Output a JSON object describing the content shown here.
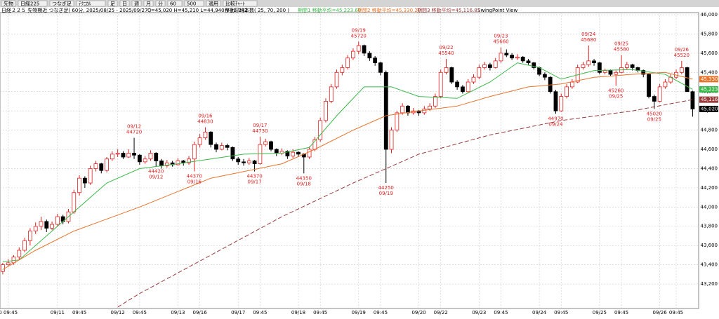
{
  "toolbar": {
    "items": [
      "先物",
      "日経225",
      "つなぎ足",
      "ﾃｸﾆｶﾙ",
      "足",
      "日",
      "週",
      "月",
      "分",
      "60",
      "500",
      "適用",
      "比較ﾁｬｰﾄ"
    ]
  },
  "chart_data": {
    "type": "candlestick",
    "info": {
      "title": "日経２２５ 先物期近 つなぎ足( 60分, 2025/08/25 - 2025/09/27 )",
      "ohlcv": "C=45,020 H=45,210 L=44,940 V=1,242",
      "ma_counts": "移動平均本数( 25, 70, 200 )",
      "view": "SwingPoint View"
    },
    "xlim": [
      -0.5,
      127.1
    ],
    "ylim": [
      42945,
      46022
    ],
    "yticks": [
      {
        "value": 43200,
        "label": "43,200"
      },
      {
        "value": 43400,
        "label": "43,400"
      },
      {
        "value": 43600,
        "label": "43,600"
      },
      {
        "value": 43800,
        "label": "43,800"
      },
      {
        "value": 44000,
        "label": "44,000"
      },
      {
        "value": 44200,
        "label": "44,200"
      },
      {
        "value": 44400,
        "label": "44,400"
      },
      {
        "value": 44600,
        "label": "44,600"
      },
      {
        "value": 44800,
        "label": "44,800"
      },
      {
        "value": 45000,
        "label": "45,000"
      },
      {
        "value": 45200,
        "label": "45,200"
      },
      {
        "value": 45400,
        "label": "45,400"
      },
      {
        "value": 45600,
        "label": "45,600"
      },
      {
        "value": 45800,
        "label": "45,800"
      },
      {
        "value": 46000,
        "label": "46,000"
      }
    ],
    "xticks": [
      {
        "value": 1,
        "label": "0 09:45"
      },
      {
        "value": 10,
        "label": "09/11"
      },
      {
        "value": 14,
        "label": "09:45"
      },
      {
        "value": 21,
        "label": "09/12"
      },
      {
        "value": 25,
        "label": "09:45"
      },
      {
        "value": 32,
        "label": "09/13"
      },
      {
        "value": 36,
        "label": "09/16"
      },
      {
        "value": 43,
        "label": "09/17"
      },
      {
        "value": 47,
        "label": "09:45"
      },
      {
        "value": 54,
        "label": "09/18"
      },
      {
        "value": 58,
        "label": "09:45"
      },
      {
        "value": 65,
        "label": "09/19"
      },
      {
        "value": 69,
        "label": "09:45"
      },
      {
        "value": 76,
        "label": "09/20"
      },
      {
        "value": 80,
        "label": "09/22"
      },
      {
        "value": 87,
        "label": "09/23"
      },
      {
        "value": 91,
        "label": "09:45"
      },
      {
        "value": 98,
        "label": "09/24"
      },
      {
        "value": 102,
        "label": "09:45"
      },
      {
        "value": 109,
        "label": "09/25"
      },
      {
        "value": 113,
        "label": "09:45"
      },
      {
        "value": 120,
        "label": "09/26"
      },
      {
        "value": 123,
        "label": "09:45"
      }
    ],
    "grid": true,
    "up_color": "#e02020",
    "down_color": "#000000",
    "candles": [
      [
        43330,
        43420,
        43300,
        43400
      ],
      [
        43400,
        43460,
        43380,
        43420
      ],
      [
        43420,
        43500,
        43400,
        43480
      ],
      [
        43480,
        43580,
        43450,
        43550
      ],
      [
        43550,
        43680,
        43530,
        43650
      ],
      [
        43650,
        43780,
        43600,
        43750
      ],
      [
        43750,
        43840,
        43720,
        43800
      ],
      [
        43800,
        43900,
        43760,
        43850
      ],
      [
        43850,
        43870,
        43740,
        43780
      ],
      [
        43780,
        43850,
        43760,
        43820
      ],
      [
        43820,
        43930,
        43800,
        43900
      ],
      [
        43900,
        43920,
        43820,
        43850
      ],
      [
        43850,
        43980,
        43830,
        43950
      ],
      [
        43950,
        44180,
        43930,
        44150
      ],
      [
        44150,
        44330,
        44120,
        44300
      ],
      [
        44300,
        44320,
        44200,
        44250
      ],
      [
        44250,
        44430,
        44230,
        44400
      ],
      [
        44400,
        44480,
        44370,
        44450
      ],
      [
        44450,
        44460,
        44350,
        44380
      ],
      [
        44380,
        44520,
        44360,
        44500
      ],
      [
        44500,
        44580,
        44480,
        44550
      ],
      [
        44550,
        44600,
        44520,
        44560
      ],
      [
        44560,
        44580,
        44500,
        44520
      ],
      [
        44520,
        44600,
        44510,
        44560
      ],
      [
        44560,
        44720,
        44500,
        44540
      ],
      [
        44540,
        44550,
        44440,
        44470
      ],
      [
        44470,
        44530,
        44450,
        44500
      ],
      [
        44500,
        44590,
        44480,
        44560
      ],
      [
        44560,
        44570,
        44420,
        44480
      ],
      [
        44480,
        44500,
        44400,
        44430
      ],
      [
        44430,
        44490,
        44410,
        44460
      ],
      [
        44460,
        44480,
        44420,
        44440
      ],
      [
        44440,
        44510,
        44430,
        44480
      ],
      [
        44480,
        44490,
        44430,
        44460
      ],
      [
        44460,
        44530,
        44440,
        44500
      ],
      [
        44500,
        44680,
        44370,
        44650
      ],
      [
        44650,
        44760,
        44620,
        44720
      ],
      [
        44720,
        44830,
        44700,
        44780
      ],
      [
        44780,
        44790,
        44620,
        44650
      ],
      [
        44650,
        44670,
        44570,
        44600
      ],
      [
        44600,
        44670,
        44590,
        44640
      ],
      [
        44640,
        44660,
        44590,
        44620
      ],
      [
        44620,
        44630,
        44480,
        44500
      ],
      [
        44500,
        44520,
        44440,
        44470
      ],
      [
        44470,
        44500,
        44430,
        44460
      ],
      [
        44460,
        44510,
        44440,
        44480
      ],
      [
        44480,
        44490,
        44370,
        44450
      ],
      [
        44450,
        44730,
        44440,
        44650
      ],
      [
        44650,
        44710,
        44630,
        44680
      ],
      [
        44680,
        44690,
        44580,
        44600
      ],
      [
        44600,
        44610,
        44530,
        44560
      ],
      [
        44560,
        44610,
        44540,
        44580
      ],
      [
        44580,
        44590,
        44500,
        44530
      ],
      [
        44530,
        44600,
        44510,
        44570
      ],
      [
        44570,
        44580,
        44520,
        44550
      ],
      [
        44550,
        44560,
        44350,
        44520
      ],
      [
        44520,
        44630,
        44500,
        44600
      ],
      [
        44600,
        44730,
        44580,
        44700
      ],
      [
        44700,
        44930,
        44680,
        44900
      ],
      [
        44900,
        45130,
        44880,
        45100
      ],
      [
        45100,
        45280,
        45080,
        45250
      ],
      [
        45250,
        45430,
        45230,
        45400
      ],
      [
        45400,
        45480,
        45370,
        45450
      ],
      [
        45450,
        45580,
        45430,
        45550
      ],
      [
        45550,
        45650,
        45530,
        45620
      ],
      [
        45620,
        45720,
        45590,
        45680
      ],
      [
        45680,
        45690,
        45570,
        45600
      ],
      [
        45600,
        45620,
        45520,
        45550
      ],
      [
        45550,
        45570,
        45470,
        45500
      ],
      [
        45500,
        45510,
        45370,
        45400
      ],
      [
        45400,
        45420,
        44250,
        44600
      ],
      [
        44600,
        44830,
        44560,
        44800
      ],
      [
        44800,
        45000,
        44780,
        44980
      ],
      [
        44980,
        45080,
        44960,
        45050
      ],
      [
        45050,
        45060,
        44950,
        44980
      ],
      [
        44980,
        45030,
        44960,
        45000
      ],
      [
        45000,
        45010,
        44950,
        44980
      ],
      [
        44980,
        45050,
        44960,
        45020
      ],
      [
        45020,
        45080,
        45000,
        45050
      ],
      [
        45050,
        45180,
        45030,
        45150
      ],
      [
        45150,
        45430,
        45130,
        45400
      ],
      [
        45400,
        45540,
        45380,
        45450
      ],
      [
        45450,
        45460,
        45280,
        45300
      ],
      [
        45300,
        45320,
        45220,
        45250
      ],
      [
        45250,
        45270,
        45180,
        45200
      ],
      [
        45200,
        45330,
        45190,
        45300
      ],
      [
        45300,
        45380,
        45280,
        45350
      ],
      [
        45350,
        45480,
        45330,
        45450
      ],
      [
        45450,
        45510,
        45430,
        45480
      ],
      [
        45480,
        45500,
        45420,
        45450
      ],
      [
        45450,
        45550,
        45440,
        45520
      ],
      [
        45520,
        45660,
        45500,
        45600
      ],
      [
        45600,
        45640,
        45560,
        45580
      ],
      [
        45580,
        45600,
        45530,
        45550
      ],
      [
        45550,
        45590,
        45530,
        45560
      ],
      [
        45560,
        45570,
        45500,
        45520
      ],
      [
        45520,
        45540,
        45480,
        45500
      ],
      [
        45500,
        45510,
        45430,
        45450
      ],
      [
        45450,
        45460,
        45360,
        45380
      ],
      [
        45380,
        45400,
        45320,
        45350
      ],
      [
        45350,
        45360,
        45180,
        45200
      ],
      [
        45200,
        45220,
        44970,
        45000
      ],
      [
        45000,
        45180,
        44990,
        45150
      ],
      [
        45150,
        45280,
        45130,
        45250
      ],
      [
        45250,
        45330,
        45230,
        45300
      ],
      [
        45300,
        45480,
        45290,
        45450
      ],
      [
        45450,
        45510,
        45430,
        45480
      ],
      [
        45480,
        45680,
        45460,
        45520
      ],
      [
        45520,
        45540,
        45470,
        45500
      ],
      [
        45500,
        45510,
        45380,
        45400
      ],
      [
        45400,
        45440,
        45380,
        45420
      ],
      [
        45420,
        45430,
        45360,
        45380
      ],
      [
        45380,
        45420,
        45260,
        45400
      ],
      [
        45400,
        45580,
        45390,
        45450
      ],
      [
        45450,
        45510,
        45430,
        45480
      ],
      [
        45480,
        45490,
        45420,
        45450
      ],
      [
        45450,
        45460,
        45400,
        45420
      ],
      [
        45420,
        45430,
        45350,
        45380
      ],
      [
        45380,
        45390,
        45130,
        45150
      ],
      [
        45150,
        45170,
        45020,
        45100
      ],
      [
        45100,
        45280,
        45090,
        45250
      ],
      [
        45250,
        45330,
        45230,
        45300
      ],
      [
        45300,
        45380,
        45280,
        45350
      ],
      [
        45350,
        45430,
        45330,
        45400
      ],
      [
        45400,
        45520,
        45380,
        45450
      ],
      [
        45450,
        45460,
        45200,
        45200
      ],
      [
        45200,
        45210,
        44940,
        45020
      ]
    ],
    "series": [
      {
        "name": "期間1 移動平均=45,223.60",
        "color": "#3cb84a",
        "dash": false,
        "x": [
          0,
          3,
          12,
          19,
          25,
          32,
          38,
          44,
          51,
          56,
          61,
          66,
          71,
          76,
          83,
          89,
          94,
          98,
          102,
          108,
          115,
          121,
          126
        ],
        "values": [
          43430,
          43450,
          43900,
          44250,
          44400,
          44450,
          44500,
          44550,
          44560,
          44620,
          44950,
          45250,
          45250,
          45150,
          45130,
          45300,
          45500,
          45450,
          45330,
          45420,
          45430,
          45380,
          45224
        ]
      },
      {
        "name": "期間2 移動平均=45,330.20",
        "color": "#e8732a",
        "dash": false,
        "x": [
          0,
          6,
          13,
          25,
          38,
          51,
          57,
          64,
          70,
          76,
          83,
          89,
          96,
          102,
          108,
          115,
          121,
          126
        ],
        "values": [
          43350,
          43550,
          43750,
          44000,
          44300,
          44450,
          44600,
          44800,
          44950,
          45000,
          45050,
          45150,
          45250,
          45280,
          45350,
          45380,
          45400,
          45330
        ]
      },
      {
        "name": "期間3 移動平均=45,116.85",
        "color": "#9a3a3a",
        "dash": true,
        "x": [
          21,
          25,
          38,
          51,
          64,
          70,
          76,
          89,
          102,
          115,
          126
        ],
        "values": [
          42960,
          43100,
          43500,
          43900,
          44250,
          44400,
          44550,
          44750,
          44900,
          45000,
          45117
        ]
      }
    ],
    "price_tags": [
      {
        "value": 45330.2,
        "label": "45,330",
        "color": "#e8732a"
      },
      {
        "value": 45223.6,
        "label": "45,223",
        "color": "#3cb84a"
      },
      {
        "value": 45116.85,
        "label": "45,116",
        "color": "#9a3a3a"
      },
      {
        "value": 45020,
        "label": "45,020",
        "color": "#000000"
      }
    ],
    "annotations": [
      {
        "x": 24,
        "kind": "high",
        "date": "09/12",
        "price": 44720
      },
      {
        "x": 28,
        "kind": "low",
        "date": "09/12",
        "price": 44420
      },
      {
        "x": 37,
        "kind": "high",
        "date": "09/16",
        "price": 44830
      },
      {
        "x": 35,
        "kind": "low",
        "date": "09/16",
        "price": 44370
      },
      {
        "x": 47,
        "kind": "high",
        "date": "09/17",
        "price": 44730
      },
      {
        "x": 46,
        "kind": "low",
        "date": "09/17",
        "price": 44370
      },
      {
        "x": 55,
        "kind": "low",
        "date": "09/18",
        "price": 44350
      },
      {
        "x": 65,
        "kind": "high",
        "date": "09/19",
        "price": 45720
      },
      {
        "x": 70,
        "kind": "low",
        "date": "09/19",
        "price": 44250
      },
      {
        "x": 81,
        "kind": "high",
        "date": "09/22",
        "price": 45540
      },
      {
        "x": 91,
        "kind": "high",
        "date": "09/23",
        "price": 45660
      },
      {
        "x": 101,
        "kind": "low",
        "date": "09/24",
        "price": 44970
      },
      {
        "x": 107,
        "kind": "high",
        "date": "09/24",
        "price": 45680
      },
      {
        "x": 113,
        "kind": "high",
        "date": "09/25",
        "price": 45580
      },
      {
        "x": 112,
        "kind": "low",
        "date": "09/25",
        "price": 45260
      },
      {
        "x": 119,
        "kind": "low",
        "date": "09/25",
        "price": 45020
      },
      {
        "x": 124,
        "kind": "high",
        "date": "09/26",
        "price": 45520
      }
    ]
  }
}
